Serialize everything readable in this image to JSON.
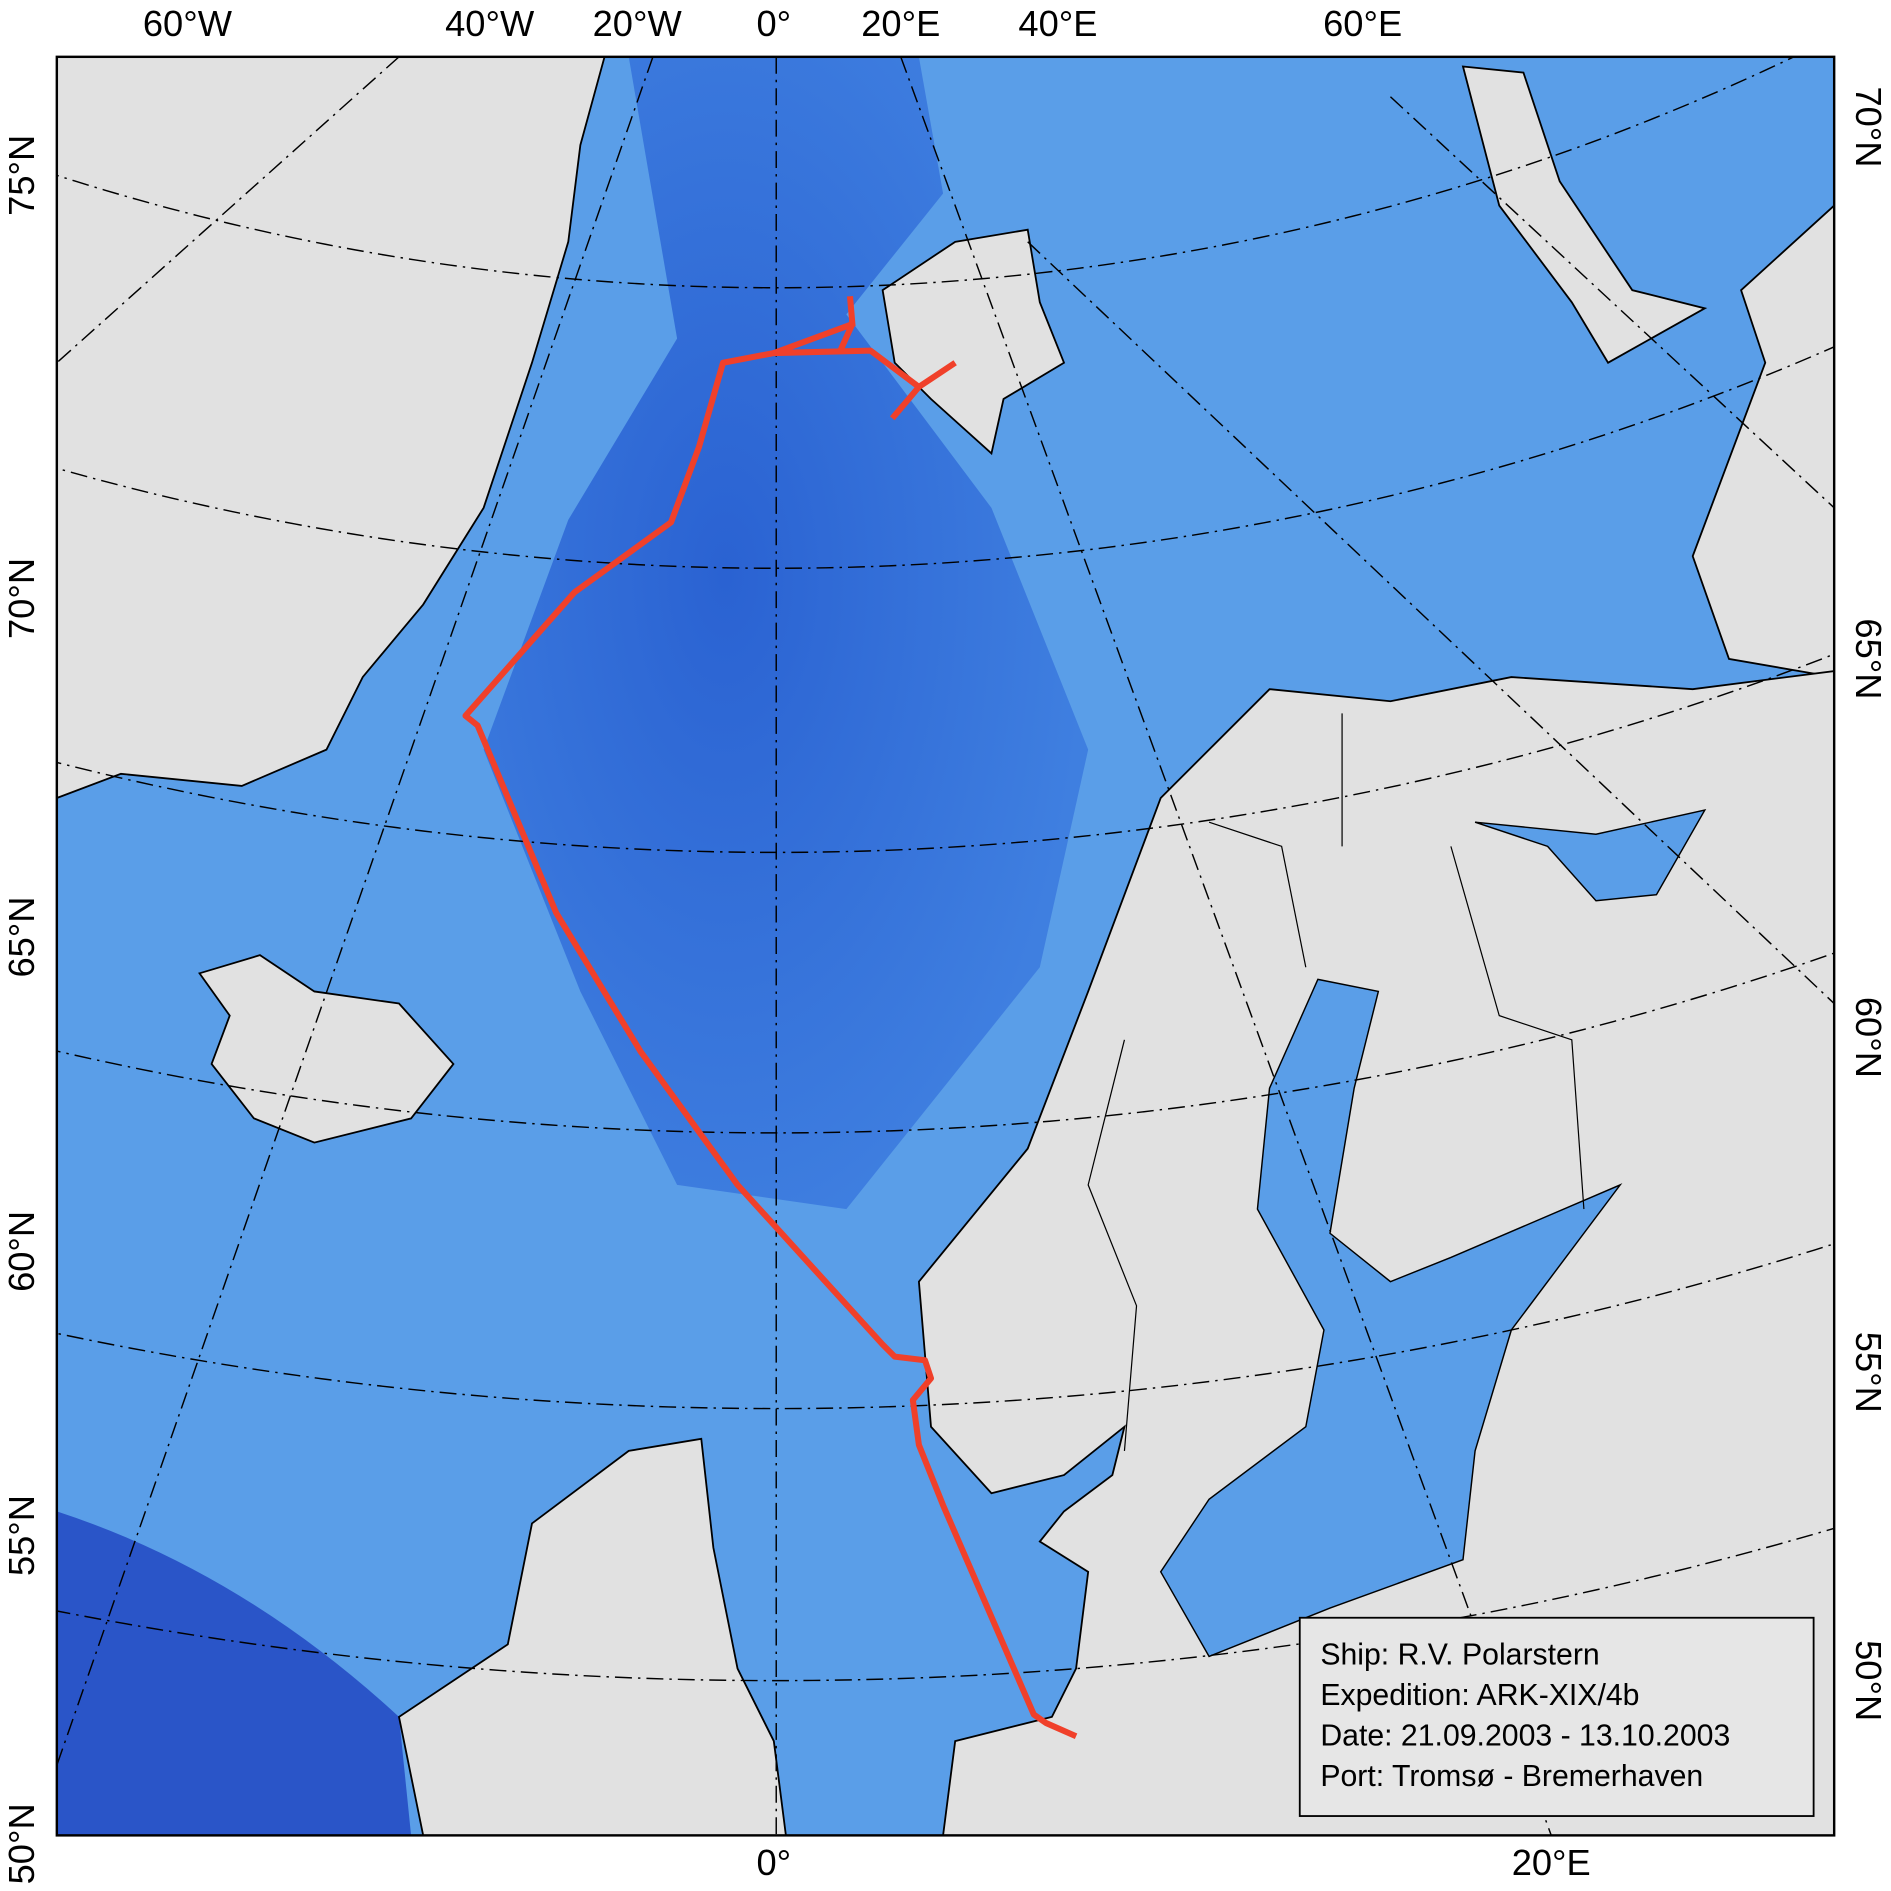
{
  "map": {
    "top_labels": [
      "60°W",
      "40°W",
      "20°W",
      "0°",
      "20°E",
      "40°E",
      "60°E"
    ],
    "left_labels": [
      "75°N",
      "70°N",
      "65°N",
      "60°N",
      "55°N",
      "50°N"
    ],
    "right_labels": [
      "70°N",
      "65°N",
      "60°N",
      "55°N",
      "50°N"
    ],
    "bottom_labels": [
      "0°",
      "20°E"
    ]
  },
  "info_box": {
    "lines": [
      "Ship: R.V. Polarstern",
      "Expedition: ARK-XIX/4b",
      "Date: 21.09.2003 - 13.10.2003",
      "Port: Tromsø - Bremerhaven"
    ]
  }
}
